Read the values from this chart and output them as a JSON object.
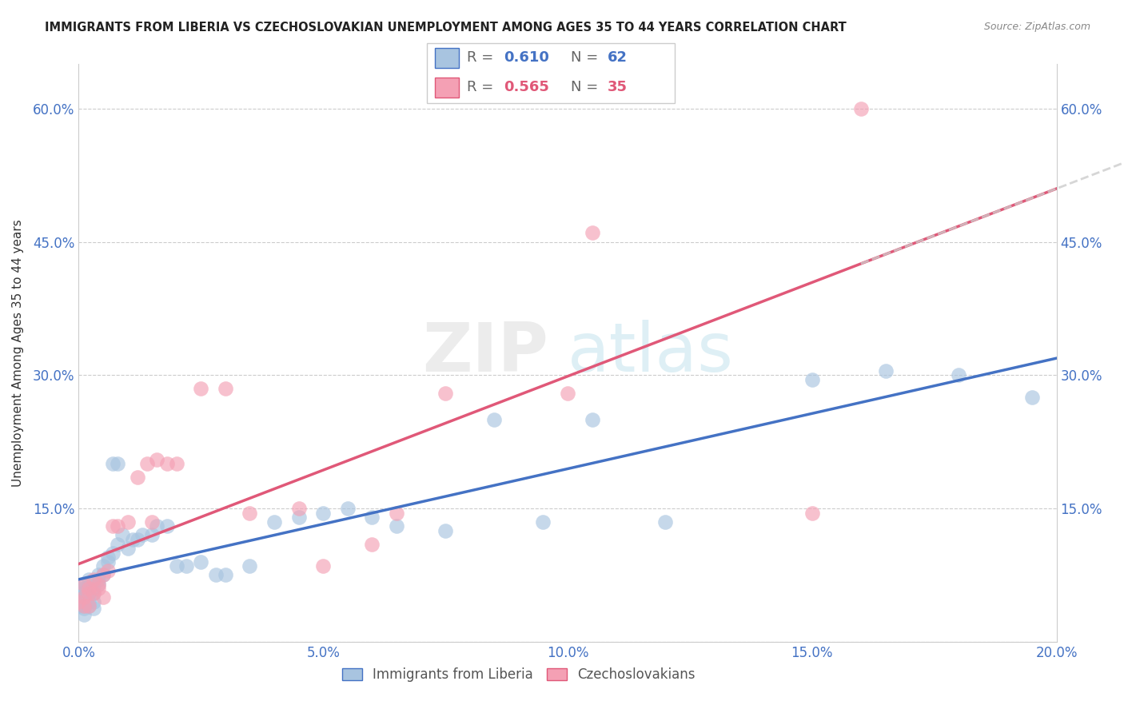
{
  "title": "IMMIGRANTS FROM LIBERIA VS CZECHOSLOVAKIAN UNEMPLOYMENT AMONG AGES 35 TO 44 YEARS CORRELATION CHART",
  "source": "Source: ZipAtlas.com",
  "ylabel": "Unemployment Among Ages 35 to 44 years",
  "legend_label_1": "Immigrants from Liberia",
  "legend_label_2": "Czechoslovakians",
  "R1": 0.61,
  "N1": 62,
  "R2": 0.565,
  "N2": 35,
  "color1": "#a8c4e0",
  "color2": "#f4a0b4",
  "line_color1": "#4472c4",
  "line_color2": "#e05878",
  "tick_color": "#4472c4",
  "xlim": [
    0.0,
    0.2
  ],
  "ylim": [
    0.0,
    0.65
  ],
  "xticks": [
    0.0,
    0.05,
    0.1,
    0.15,
    0.2
  ],
  "yticks": [
    0.0,
    0.15,
    0.3,
    0.45,
    0.6
  ],
  "xtick_labels": [
    "0.0%",
    "5.0%",
    "10.0%",
    "15.0%",
    "20.0%"
  ],
  "ytick_labels": [
    "",
    "15.0%",
    "30.0%",
    "45.0%",
    "60.0%"
  ],
  "blue_x": [
    0.0,
    0.0,
    0.0,
    0.0,
    0.001,
    0.001,
    0.001,
    0.001,
    0.001,
    0.001,
    0.001,
    0.001,
    0.002,
    0.002,
    0.002,
    0.002,
    0.002,
    0.002,
    0.003,
    0.003,
    0.003,
    0.003,
    0.004,
    0.004,
    0.004,
    0.005,
    0.005,
    0.006,
    0.006,
    0.007,
    0.007,
    0.008,
    0.008,
    0.009,
    0.01,
    0.011,
    0.012,
    0.013,
    0.015,
    0.016,
    0.018,
    0.02,
    0.022,
    0.025,
    0.028,
    0.03,
    0.035,
    0.04,
    0.045,
    0.05,
    0.055,
    0.06,
    0.065,
    0.075,
    0.085,
    0.095,
    0.105,
    0.12,
    0.15,
    0.165,
    0.18,
    0.195
  ],
  "blue_y": [
    0.05,
    0.04,
    0.055,
    0.06,
    0.03,
    0.05,
    0.045,
    0.06,
    0.055,
    0.04,
    0.065,
    0.038,
    0.04,
    0.06,
    0.055,
    0.07,
    0.045,
    0.065,
    0.055,
    0.045,
    0.06,
    0.038,
    0.075,
    0.07,
    0.065,
    0.075,
    0.085,
    0.09,
    0.095,
    0.1,
    0.2,
    0.11,
    0.2,
    0.12,
    0.105,
    0.115,
    0.115,
    0.12,
    0.12,
    0.13,
    0.13,
    0.085,
    0.085,
    0.09,
    0.075,
    0.075,
    0.085,
    0.135,
    0.14,
    0.145,
    0.15,
    0.14,
    0.13,
    0.125,
    0.25,
    0.135,
    0.25,
    0.135,
    0.295,
    0.305,
    0.3,
    0.275
  ],
  "pink_x": [
    0.0,
    0.001,
    0.001,
    0.001,
    0.002,
    0.002,
    0.002,
    0.003,
    0.003,
    0.004,
    0.004,
    0.005,
    0.005,
    0.006,
    0.007,
    0.008,
    0.01,
    0.012,
    0.014,
    0.015,
    0.016,
    0.018,
    0.02,
    0.025,
    0.03,
    0.035,
    0.045,
    0.05,
    0.06,
    0.065,
    0.075,
    0.1,
    0.105,
    0.15,
    0.16
  ],
  "pink_y": [
    0.045,
    0.05,
    0.04,
    0.065,
    0.055,
    0.06,
    0.04,
    0.07,
    0.055,
    0.065,
    0.06,
    0.075,
    0.05,
    0.08,
    0.13,
    0.13,
    0.135,
    0.185,
    0.2,
    0.135,
    0.205,
    0.2,
    0.2,
    0.285,
    0.285,
    0.145,
    0.15,
    0.085,
    0.11,
    0.145,
    0.28,
    0.28,
    0.46,
    0.145,
    0.6
  ],
  "watermark_zip": "ZIP",
  "watermark_atlas": "atlas",
  "background_color": "#ffffff"
}
